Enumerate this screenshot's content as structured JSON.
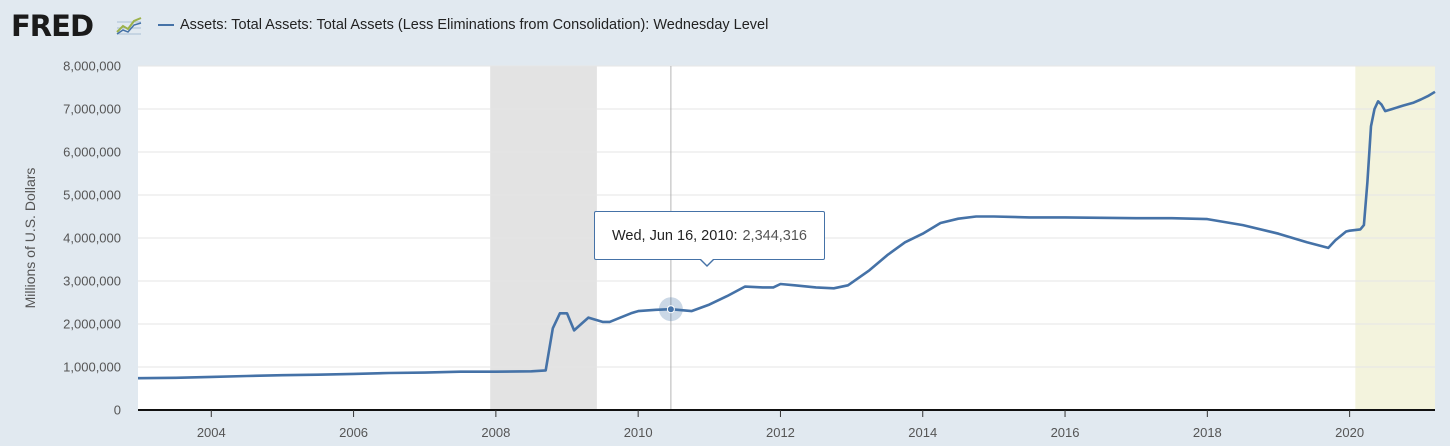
{
  "header": {
    "logo_text": "FRED",
    "legend_label": "Assets: Total Assets: Total Assets (Less Eliminations from Consolidation): Wednesday Level",
    "series_color": "#4572a7"
  },
  "tooltip": {
    "date": "Wed, Jun 16, 2010:",
    "value": "2,344,316"
  },
  "chart_data": {
    "type": "line",
    "title": "",
    "xlabel": "",
    "ylabel": "Millions of U.S. Dollars",
    "xlim": [
      2002.97,
      2021.2
    ],
    "ylim": [
      0,
      8000000
    ],
    "y_ticks": [
      0,
      1000000,
      2000000,
      3000000,
      4000000,
      5000000,
      6000000,
      7000000,
      8000000
    ],
    "y_tick_labels": [
      "0",
      "1,000,000",
      "2,000,000",
      "3,000,000",
      "4,000,000",
      "5,000,000",
      "6,000,000",
      "7,000,000",
      "8,000,000"
    ],
    "x_ticks": [
      2004,
      2006,
      2008,
      2010,
      2012,
      2014,
      2016,
      2018,
      2020
    ],
    "x_tick_labels": [
      "2004",
      "2006",
      "2008",
      "2010",
      "2012",
      "2014",
      "2016",
      "2018",
      "2020"
    ],
    "recessions": [
      [
        2007.92,
        2009.42
      ],
      [
        2020.08,
        2020.25
      ]
    ],
    "shaded_regions": [
      {
        "x0": 2007.92,
        "x1": 2009.42,
        "color": "#e3e3e3"
      },
      {
        "x0": 2020.08,
        "x1": 2021.2,
        "color": "#f3f3dd"
      }
    ],
    "highlight": {
      "x": 2010.46,
      "y": 2344316,
      "label": "Wed, Jun 16, 2010: 2,344,316"
    },
    "series": [
      {
        "name": "Assets: Total Assets: Total Assets (Less Eliminations from Consolidation): Wednesday Level",
        "x": [
          2002.97,
          2003.5,
          2004.0,
          2004.5,
          2005.0,
          2005.5,
          2006.0,
          2006.5,
          2007.0,
          2007.5,
          2008.0,
          2008.5,
          2008.7,
          2008.8,
          2008.9,
          2009.0,
          2009.1,
          2009.2,
          2009.3,
          2009.4,
          2009.5,
          2009.6,
          2009.75,
          2009.9,
          2010.0,
          2010.25,
          2010.46,
          2010.75,
          2011.0,
          2011.25,
          2011.5,
          2011.75,
          2011.9,
          2012.0,
          2012.2,
          2012.5,
          2012.75,
          2012.95,
          2013.25,
          2013.5,
          2013.75,
          2014.0,
          2014.25,
          2014.5,
          2014.75,
          2015.0,
          2015.5,
          2016.0,
          2016.5,
          2017.0,
          2017.5,
          2018.0,
          2018.5,
          2019.0,
          2019.4,
          2019.7,
          2019.8,
          2019.95,
          2020.0,
          2020.15,
          2020.2,
          2020.25,
          2020.3,
          2020.35,
          2020.4,
          2020.45,
          2020.5,
          2020.6,
          2020.75,
          2020.9,
          2021.0,
          2021.1,
          2021.2
        ],
        "values": [
          740000,
          750000,
          770000,
          790000,
          810000,
          820000,
          840000,
          860000,
          870000,
          890000,
          890000,
          900000,
          920000,
          1900000,
          2250000,
          2250000,
          1850000,
          2000000,
          2150000,
          2100000,
          2050000,
          2050000,
          2150000,
          2250000,
          2300000,
          2330000,
          2344316,
          2300000,
          2450000,
          2650000,
          2870000,
          2850000,
          2850000,
          2930000,
          2900000,
          2850000,
          2830000,
          2900000,
          3250000,
          3600000,
          3900000,
          4100000,
          4350000,
          4450000,
          4500000,
          4500000,
          4480000,
          4480000,
          4470000,
          4460000,
          4460000,
          4440000,
          4300000,
          4100000,
          3900000,
          3770000,
          3950000,
          4150000,
          4170000,
          4200000,
          4300000,
          5300000,
          6600000,
          7000000,
          7180000,
          7100000,
          6950000,
          7000000,
          7080000,
          7150000,
          7220000,
          7300000,
          7400000
        ]
      }
    ]
  }
}
